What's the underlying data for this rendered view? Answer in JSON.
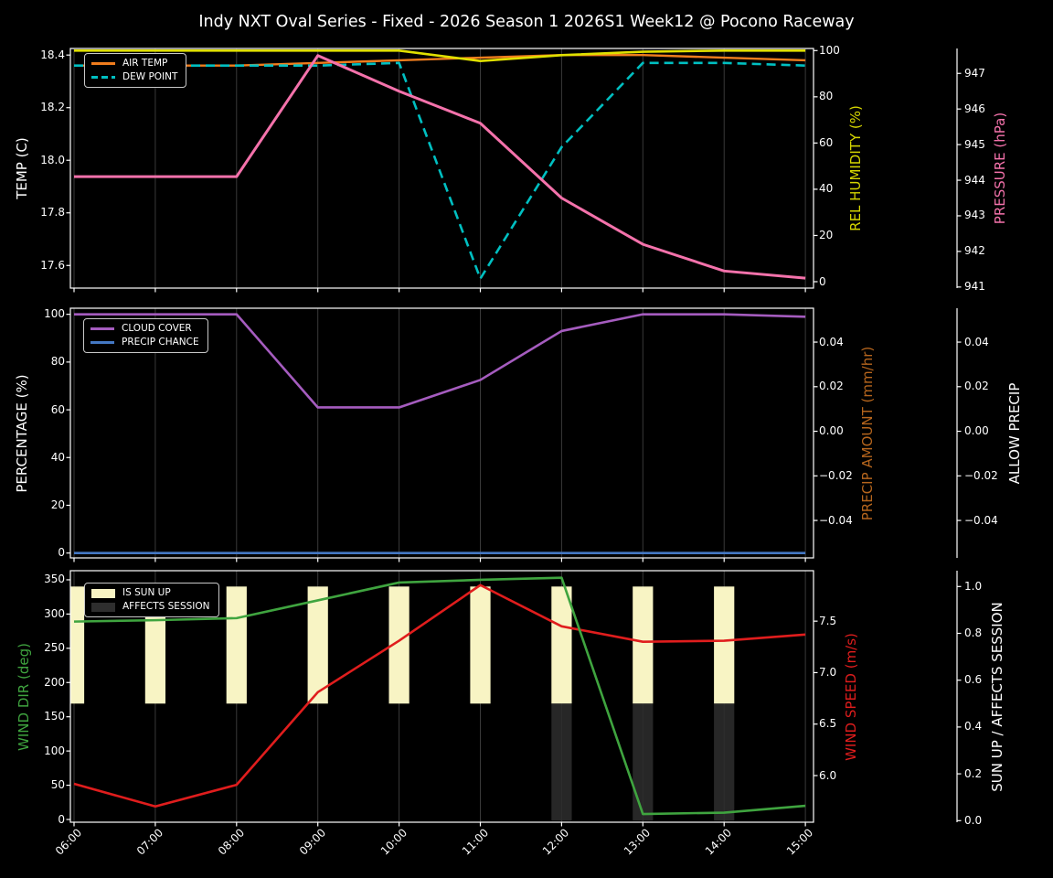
{
  "title": "Indy NXT Oval Series - Fixed - 2026 Season 1 2026S1 Week12 @ Pocono Raceway",
  "x_axis": {
    "tick_labels": [
      "06:00",
      "07:00",
      "08:00",
      "09:00",
      "10:00",
      "11:00",
      "12:00",
      "13:00",
      "14:00",
      "15:00"
    ],
    "hours": [
      6,
      7,
      8,
      9,
      10,
      11,
      12,
      13,
      14,
      15
    ],
    "xlim": [
      5.955,
      15.1
    ],
    "grid": true,
    "grid_color": "#3a3a3a"
  },
  "chart_data": [
    {
      "type": "line",
      "panel": "temperature-humidity-pressure",
      "axes": {
        "left": {
          "label": "TEMP (C)",
          "label_color": "#ffffff",
          "tick_labels": [
            "18.4",
            "18.2",
            "18.0",
            "17.8",
            "17.6"
          ],
          "tick_values": [
            18.4,
            18.2,
            18.0,
            17.8,
            17.6
          ],
          "ylim": [
            17.514,
            18.425
          ]
        },
        "right": [
          {
            "label": "REL HUMIDITY (%)",
            "label_color": "#d6d600",
            "tick_labels": [
              "100",
              "80",
              "60",
              "40",
              "20",
              "0"
            ],
            "tick_values": [
              100,
              80,
              60,
              40,
              20,
              0
            ],
            "ylim": [
              -2.77,
              100.91
            ],
            "offset_spine": false
          },
          {
            "label": "PRESSURE (hPa)",
            "label_color": "#f472ab",
            "tick_labels": [
              "947",
              "946",
              "945",
              "944",
              "943",
              "942",
              "941"
            ],
            "tick_values": [
              947,
              946,
              945,
              944,
              943,
              942,
              941
            ],
            "ylim": [
              940.97,
              947.7
            ],
            "offset_spine": true
          }
        ]
      },
      "legend": {
        "position": "top-left",
        "entries": [
          {
            "label": "AIR TEMP",
            "color": "#f07d1d",
            "swatch": "line"
          },
          {
            "label": "DEW POINT",
            "color": "#00bfc1",
            "swatch": "dashed"
          }
        ]
      },
      "series": [
        {
          "name": "AIR TEMP",
          "axis": "left",
          "color": "#f07d1d",
          "dashed": false,
          "width": 2.4,
          "values": [
            18.36,
            18.36,
            18.36,
            18.37,
            18.38,
            18.39,
            18.4,
            18.4,
            18.39,
            18.38
          ]
        },
        {
          "name": "DEW POINT",
          "axis": "left",
          "color": "#00bfc1",
          "dashed": true,
          "width": 2.6,
          "values": [
            18.36,
            18.36,
            18.36,
            18.36,
            18.37,
            17.55,
            18.05,
            18.37,
            18.37,
            18.36
          ]
        },
        {
          "name": "REL HUMIDITY",
          "axis": "right0",
          "color": "#e0e000",
          "dashed": false,
          "width": 2.6,
          "values": [
            100,
            100,
            100,
            100,
            100,
            95.5,
            98,
            99.5,
            100,
            100
          ]
        },
        {
          "name": "PRESSURE",
          "axis": "right1",
          "color": "#f472ab",
          "dashed": false,
          "width": 3,
          "values": [
            944.1,
            944.1,
            944.1,
            947.5,
            946.5,
            945.6,
            943.5,
            942.2,
            941.45,
            941.25
          ]
        }
      ]
    },
    {
      "type": "line",
      "panel": "cloud-precip",
      "axes": {
        "left": {
          "label": "PERCENTAGE (%)",
          "label_color": "#ffffff",
          "tick_labels": [
            "100",
            "80",
            "60",
            "40",
            "20",
            "0"
          ],
          "tick_values": [
            100,
            80,
            60,
            40,
            20,
            0
          ],
          "ylim": [
            -2.03,
            102.55
          ]
        },
        "right": [
          {
            "label": "PRECIP AMOUNT (mm/hr)",
            "label_color": "#b5651d",
            "tick_labels": [
              "0.04",
              "0.02",
              "0.00",
              "−0.02",
              "−0.04"
            ],
            "tick_values": [
              0.04,
              0.02,
              0.0,
              -0.02,
              -0.04
            ],
            "ylim": [
              -0.0568,
              0.0552
            ],
            "offset_spine": false
          },
          {
            "label": "ALLOW PRECIP",
            "label_color": "#ffffff",
            "tick_labels": [
              "0.04",
              "0.02",
              "0.00",
              "−0.02",
              "−0.04"
            ],
            "tick_values": [
              0.04,
              0.02,
              0.0,
              -0.02,
              -0.04
            ],
            "ylim": [
              -0.0568,
              0.0552
            ],
            "offset_spine": true
          }
        ]
      },
      "legend": {
        "position": "top-left",
        "entries": [
          {
            "label": "CLOUD COVER",
            "color": "#a55cbf",
            "swatch": "line"
          },
          {
            "label": "PRECIP CHANCE",
            "color": "#4478c4",
            "swatch": "line"
          }
        ]
      },
      "series": [
        {
          "name": "CLOUD COVER",
          "axis": "left",
          "color": "#a55cbf",
          "dashed": false,
          "width": 2.6,
          "values": [
            100,
            100,
            100,
            61,
            61,
            72.5,
            93,
            100,
            100,
            99
          ]
        },
        {
          "name": "PRECIP CHANCE",
          "axis": "left",
          "color": "#4478c4",
          "dashed": false,
          "width": 2.6,
          "values": [
            0,
            0,
            0,
            0,
            0,
            0,
            0,
            0,
            0,
            0
          ]
        }
      ]
    },
    {
      "type": "line+bar",
      "panel": "wind-sun",
      "axes": {
        "left": {
          "label": "WIND DIR (deg)",
          "label_color": "#3fa43f",
          "tick_labels": [
            "350",
            "300",
            "250",
            "200",
            "150",
            "100",
            "50",
            "0"
          ],
          "tick_values": [
            350,
            300,
            250,
            200,
            150,
            100,
            50,
            0
          ],
          "ylim": [
            -4,
            363.3
          ]
        },
        "right": [
          {
            "label": "WIND SPEED (m/s)",
            "label_color": "#e01d1d",
            "tick_labels": [
              "7.5",
              "7.0",
              "6.5",
              "6.0"
            ],
            "tick_values": [
              7.5,
              7.0,
              6.5,
              6.0
            ],
            "ylim": [
              5.547,
              7.99
            ],
            "offset_spine": false
          },
          {
            "label": "SUN UP / AFFECTS SESSION",
            "label_color": "#ffffff",
            "tick_labels": [
              "1.0",
              "0.8",
              "0.6",
              "0.4",
              "0.2",
              "0.0"
            ],
            "tick_values": [
              1.0,
              0.8,
              0.6,
              0.4,
              0.2,
              0.0
            ],
            "ylim": [
              -0.0066,
              1.0676
            ],
            "offset_spine": true
          }
        ]
      },
      "legend": {
        "position": "top-left",
        "entries": [
          {
            "label": "IS SUN UP",
            "color": "#f8f4c4",
            "swatch": "patch"
          },
          {
            "label": "AFFECTS SESSION",
            "color": "#2e2e2e",
            "swatch": "patch"
          }
        ]
      },
      "bars": [
        {
          "name": "IS SUN UP",
          "axis": "right1",
          "color": "rgba(248,244,196,1)",
          "span": [
            0.5,
            1.0
          ],
          "width_hours": 0.25,
          "active_hours": [
            6,
            7,
            8,
            9,
            10,
            11,
            12,
            13,
            14
          ]
        },
        {
          "name": "AFFECTS SESSION",
          "axis": "right1",
          "color": "rgba(44,44,44,0.88)",
          "span": [
            0.0,
            0.5
          ],
          "width_hours": 0.25,
          "active_hours": [
            12,
            13,
            14
          ]
        }
      ],
      "series": [
        {
          "name": "WIND SPEED",
          "axis": "right0",
          "color": "#e01d1d",
          "dashed": false,
          "width": 2.6,
          "values": [
            5.92,
            5.7,
            5.91,
            6.81,
            7.31,
            7.85,
            7.45,
            7.3,
            7.31,
            7.37
          ]
        },
        {
          "name": "WIND DIR",
          "axis": "left",
          "color": "#3fa43f",
          "dashed": false,
          "width": 2.6,
          "values": [
            289,
            291,
            294,
            320,
            346,
            350,
            353,
            8,
            10,
            20
          ]
        }
      ]
    }
  ]
}
